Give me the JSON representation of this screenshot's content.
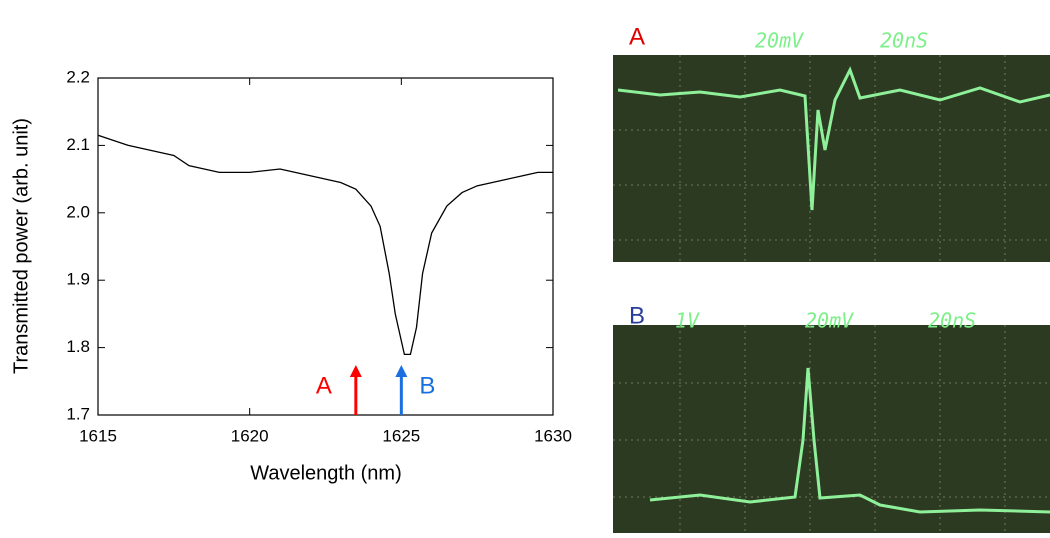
{
  "chart_data": {
    "type": "line",
    "x_label": "Wavelength (nm)",
    "y_label": "Transmitted power (arb. unit)",
    "x": [
      1615,
      1616,
      1617,
      1617.5,
      1618,
      1618.5,
      1619,
      1620,
      1621,
      1621.5,
      1622,
      1622.5,
      1623,
      1623.5,
      1624,
      1624.3,
      1624.6,
      1624.8,
      1625,
      1625.1,
      1625.3,
      1625.5,
      1625.7,
      1626,
      1626.5,
      1627,
      1627.5,
      1628,
      1628.5,
      1629,
      1629.5,
      1630
    ],
    "values": [
      2.115,
      2.1,
      2.09,
      2.085,
      2.07,
      2.065,
      2.06,
      2.06,
      2.065,
      2.06,
      2.055,
      2.05,
      2.045,
      2.035,
      2.01,
      1.98,
      1.91,
      1.85,
      1.81,
      1.79,
      1.79,
      1.83,
      1.91,
      1.97,
      2.01,
      2.03,
      2.04,
      2.045,
      2.05,
      2.055,
      2.06,
      2.06
    ],
    "color": "#000000",
    "xlim": [
      1615,
      1630
    ],
    "xticks": [
      1615,
      1620,
      1625,
      1630
    ],
    "ylim": [
      1.7,
      2.2
    ],
    "yticks": [
      1.7,
      1.8,
      1.9,
      {
        "value": 2,
        "label": "2.0"
      },
      2.1,
      2.2
    ],
    "annotations": [
      {
        "text": "A",
        "x": 1623.5,
        "color": "#ff0000"
      },
      {
        "text": "B",
        "x": 1625,
        "color": "#1a6fe0"
      }
    ]
  },
  "scope_panels": [
    {
      "label": "A",
      "readouts": [
        "20mV",
        "20nS"
      ]
    },
    {
      "label": "B",
      "readouts": [
        "1V",
        "20mV",
        "20nS"
      ]
    }
  ]
}
